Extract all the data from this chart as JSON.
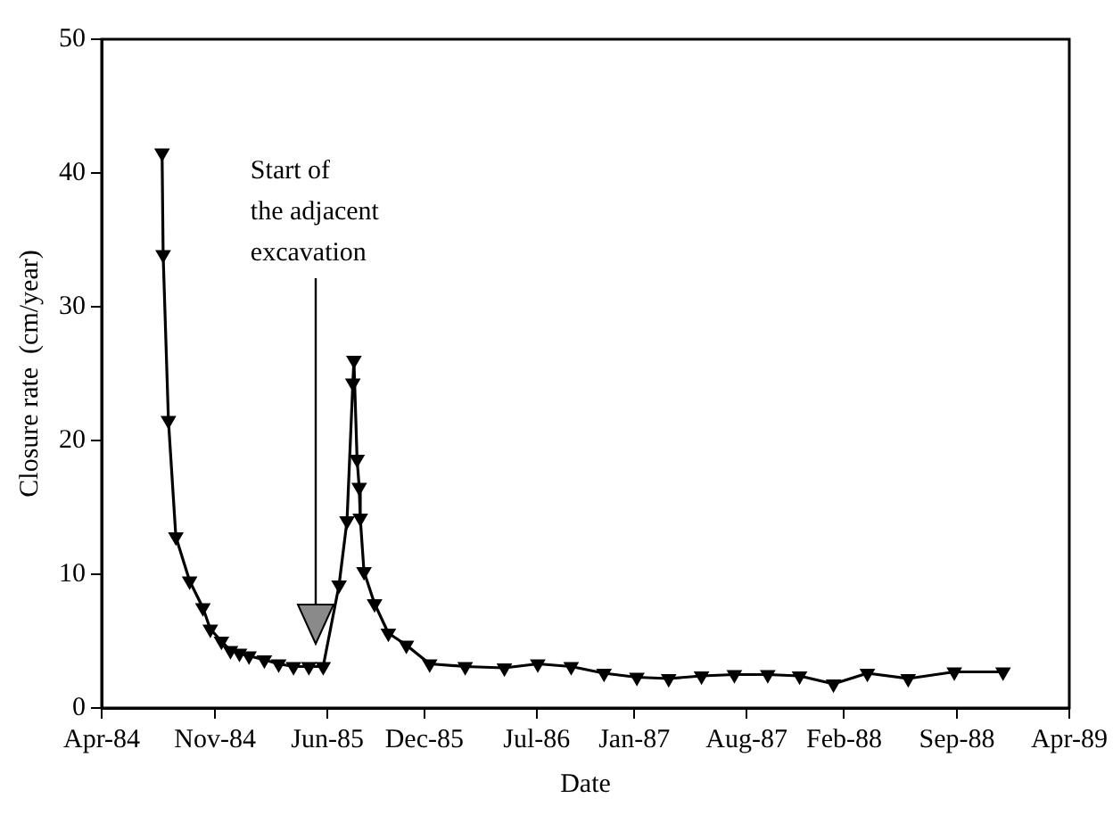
{
  "chart_data": {
    "type": "line",
    "xlabel": "Date",
    "ylabel": "Closure rate  (cm/year)",
    "marker": "triangle",
    "line_style": "solid",
    "grid": false,
    "legend": false,
    "x": [
      "1984-07-24",
      "1984-07-26",
      "1984-08-05",
      "1984-08-19",
      "1984-09-14",
      "1984-10-09",
      "1984-10-23",
      "1984-11-13",
      "1984-11-30",
      "1984-12-17",
      "1985-01-04",
      "1985-02-02",
      "1985-03-01",
      "1985-03-29",
      "1985-04-27",
      "1985-05-24",
      "1985-06-23",
      "1985-07-08",
      "1985-07-19",
      "1985-07-21",
      "1985-07-27",
      "1985-07-31",
      "1985-08-02",
      "1985-08-09",
      "1985-08-29",
      "1985-09-24",
      "1985-10-28",
      "1985-12-11",
      "1986-02-16",
      "1986-05-01",
      "1986-07-03",
      "1986-09-04",
      "1986-11-05",
      "1987-01-06",
      "1987-03-07",
      "1987-05-08",
      "1987-07-09",
      "1987-09-10",
      "1987-11-09",
      "1988-01-12",
      "1988-03-16",
      "1988-06-01",
      "1988-08-27",
      "1988-11-27"
    ],
    "series": [
      {
        "color": "#000000",
        "values": [
          41.5,
          33.9,
          21.5,
          12.8,
          9.5,
          7.5,
          5.9,
          5.0,
          4.3,
          4.1,
          3.9,
          3.6,
          3.3,
          3.1,
          3.1,
          3.1,
          9.2,
          14.0,
          24.3,
          26.0,
          18.6,
          16.5,
          14.2,
          10.2,
          7.8,
          5.6,
          4.7,
          3.3,
          3.1,
          3.0,
          3.3,
          3.1,
          2.6,
          2.3,
          2.2,
          2.4,
          2.5,
          2.5,
          2.4,
          1.8,
          2.6,
          2.2,
          2.7,
          2.7
        ]
      }
    ],
    "xlim": [
      "1984-04-01",
      "1989-04-01"
    ],
    "xticks": [
      {
        "value": "1984-04-01",
        "label": "Apr-84"
      },
      {
        "value": "1984-11-01",
        "label": "Nov-84"
      },
      {
        "value": "1985-06-01",
        "label": "Jun-85"
      },
      {
        "value": "1985-12-01",
        "label": "Dec-85"
      },
      {
        "value": "1986-07-01",
        "label": "Jul-86"
      },
      {
        "value": "1987-01-01",
        "label": "Jan-87"
      },
      {
        "value": "1987-08-01",
        "label": "Aug-87"
      },
      {
        "value": "1988-02-01",
        "label": "Feb-88"
      },
      {
        "value": "1988-09-01",
        "label": "Sep-88"
      },
      {
        "value": "1989-04-01",
        "label": "Apr-89"
      }
    ],
    "ylim": [
      0,
      50
    ],
    "yticks": [
      0,
      10,
      20,
      30,
      40,
      50
    ],
    "annotations": [
      "Start of\nthe adjacent\nexcavation"
    ]
  }
}
